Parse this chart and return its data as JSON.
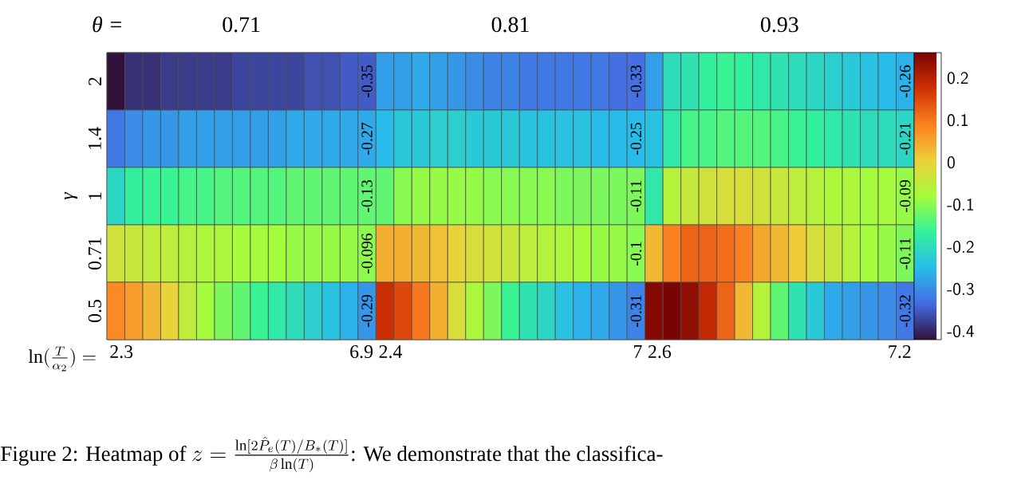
{
  "chart_data": {
    "type": "heatmap",
    "xlabel": "\\ln(\\frac{T}{\\alpha_2}) =",
    "ylabel": "γ",
    "annotations": [
      "θ =",
      "0.71",
      "0.81",
      "0.93",
      "\\text{Figure 2: Heatmap of } z = \\frac{\\ln[2\\hat{P}_e(T)/B_*(T)]}{\\beta\\ln(T)}\\text{: We demonstrate that the classifica-}"
    ],
    "categories": [
      "2.3",
      null,
      null,
      null,
      null,
      null,
      null,
      null,
      null,
      null,
      null,
      null,
      null,
      null,
      "6.9",
      "2.4",
      null,
      null,
      null,
      null,
      null,
      null,
      null,
      null,
      null,
      null,
      null,
      null,
      null,
      "7",
      "2.6",
      null,
      null,
      null,
      null,
      null,
      null,
      null,
      null,
      null,
      null,
      null,
      null,
      null,
      "7.2"
    ],
    "y_categories": [
      "2",
      "1.4",
      "1",
      "0.71",
      "0.5"
    ],
    "clim": [
      -0.42,
      0.26
    ],
    "cticks": [
      -0.4,
      -0.3,
      -0.2,
      -0.1,
      0,
      0.1,
      0.2
    ],
    "cells": [
      [
        -0.42,
        -0.39,
        -0.39,
        -0.38,
        -0.38,
        -0.38,
        -0.38,
        -0.37,
        -0.37,
        -0.37,
        -0.37,
        -0.36,
        -0.36,
        -0.35,
        -0.35,
        -0.28,
        -0.28,
        -0.27,
        -0.28,
        -0.29,
        -0.3,
        -0.31,
        -0.31,
        -0.32,
        -0.32,
        -0.32,
        -0.32,
        -0.32,
        -0.33,
        -0.33,
        -0.28,
        -0.2,
        -0.19,
        -0.17,
        -0.16,
        -0.17,
        -0.18,
        -0.19,
        -0.2,
        -0.21,
        -0.22,
        -0.23,
        -0.24,
        -0.25,
        -0.26
      ],
      [
        -0.32,
        -0.3,
        -0.29,
        -0.29,
        -0.28,
        -0.28,
        -0.28,
        -0.28,
        -0.28,
        -0.28,
        -0.27,
        -0.27,
        -0.27,
        -0.27,
        -0.27,
        -0.25,
        -0.23,
        -0.23,
        -0.22,
        -0.22,
        -0.23,
        -0.23,
        -0.23,
        -0.24,
        -0.24,
        -0.24,
        -0.24,
        -0.25,
        -0.25,
        -0.25,
        -0.24,
        -0.18,
        -0.15,
        -0.15,
        -0.14,
        -0.14,
        -0.14,
        -0.15,
        -0.16,
        -0.17,
        -0.18,
        -0.19,
        -0.2,
        -0.2,
        -0.21
      ],
      [
        -0.21,
        -0.17,
        -0.16,
        -0.16,
        -0.15,
        -0.15,
        -0.14,
        -0.14,
        -0.14,
        -0.14,
        -0.13,
        -0.13,
        -0.13,
        -0.13,
        -0.13,
        -0.13,
        -0.1,
        -0.09,
        -0.09,
        -0.09,
        -0.09,
        -0.1,
        -0.1,
        -0.1,
        -0.1,
        -0.11,
        -0.11,
        -0.11,
        -0.11,
        -0.11,
        -0.18,
        -0.06,
        -0.04,
        -0.03,
        -0.02,
        -0.02,
        -0.03,
        -0.04,
        -0.05,
        -0.06,
        -0.07,
        -0.07,
        -0.08,
        -0.08,
        -0.09
      ],
      [
        -0.03,
        -0.04,
        -0.05,
        -0.05,
        -0.06,
        -0.07,
        -0.07,
        -0.08,
        -0.08,
        -0.08,
        -0.09,
        -0.09,
        -0.09,
        -0.09,
        -0.096,
        0.04,
        0.04,
        0.03,
        0.02,
        0,
        -0.02,
        -0.03,
        -0.04,
        -0.05,
        -0.06,
        -0.07,
        -0.08,
        -0.09,
        -0.09,
        -0.1,
        0.03,
        0.09,
        0.12,
        0.12,
        0.11,
        0.09,
        0.05,
        0.03,
        0.01,
        -0.02,
        -0.04,
        -0.06,
        -0.08,
        -0.09,
        -0.11
      ],
      [
        0.08,
        0.06,
        0.03,
        0,
        -0.05,
        -0.08,
        -0.11,
        -0.13,
        -0.16,
        -0.18,
        -0.2,
        -0.22,
        -0.24,
        -0.26,
        -0.29,
        0.18,
        0.15,
        0.1,
        0.04,
        -0.02,
        -0.07,
        -0.11,
        -0.16,
        -0.19,
        -0.21,
        -0.24,
        -0.26,
        -0.27,
        -0.29,
        -0.31,
        0.25,
        0.26,
        0.24,
        0.19,
        0.12,
        0.03,
        -0.06,
        -0.13,
        -0.19,
        -0.23,
        -0.27,
        -0.28,
        -0.29,
        -0.3,
        -0.32
      ]
    ],
    "cell_labels": [
      [
        null,
        null,
        null,
        null,
        null,
        null,
        null,
        null,
        null,
        null,
        null,
        null,
        null,
        null,
        "-0.35",
        null,
        null,
        null,
        null,
        null,
        null,
        null,
        null,
        null,
        null,
        null,
        null,
        null,
        null,
        "-0.33",
        null,
        null,
        null,
        null,
        null,
        null,
        null,
        null,
        null,
        null,
        null,
        null,
        null,
        null,
        "-0.26"
      ],
      [
        null,
        null,
        null,
        null,
        null,
        null,
        null,
        null,
        null,
        null,
        null,
        null,
        null,
        null,
        "-0.27",
        null,
        null,
        null,
        null,
        null,
        null,
        null,
        null,
        null,
        null,
        null,
        null,
        null,
        null,
        "-0.25",
        null,
        null,
        null,
        null,
        null,
        null,
        null,
        null,
        null,
        null,
        null,
        null,
        null,
        null,
        "-0.21"
      ],
      [
        null,
        null,
        null,
        null,
        null,
        null,
        null,
        null,
        null,
        null,
        null,
        null,
        null,
        null,
        "-0.13",
        null,
        null,
        null,
        null,
        null,
        null,
        null,
        null,
        null,
        null,
        null,
        null,
        null,
        null,
        "-0.11",
        null,
        null,
        null,
        null,
        null,
        null,
        null,
        null,
        null,
        null,
        null,
        null,
        null,
        null,
        "-0.09"
      ],
      [
        null,
        null,
        null,
        null,
        null,
        null,
        null,
        null,
        null,
        null,
        null,
        null,
        null,
        null,
        "-0.096",
        null,
        null,
        null,
        null,
        null,
        null,
        null,
        null,
        null,
        null,
        null,
        null,
        null,
        null,
        "-0.1",
        null,
        null,
        null,
        null,
        null,
        null,
        null,
        null,
        null,
        null,
        null,
        null,
        null,
        null,
        "-0.11"
      ],
      [
        null,
        null,
        null,
        null,
        null,
        null,
        null,
        null,
        null,
        null,
        null,
        null,
        null,
        null,
        "-0.29",
        null,
        null,
        null,
        null,
        null,
        null,
        null,
        null,
        null,
        null,
        null,
        null,
        null,
        null,
        "-0.31",
        null,
        null,
        null,
        null,
        null,
        null,
        null,
        null,
        null,
        null,
        null,
        null,
        null,
        null,
        "-0.32"
      ]
    ]
  }
}
